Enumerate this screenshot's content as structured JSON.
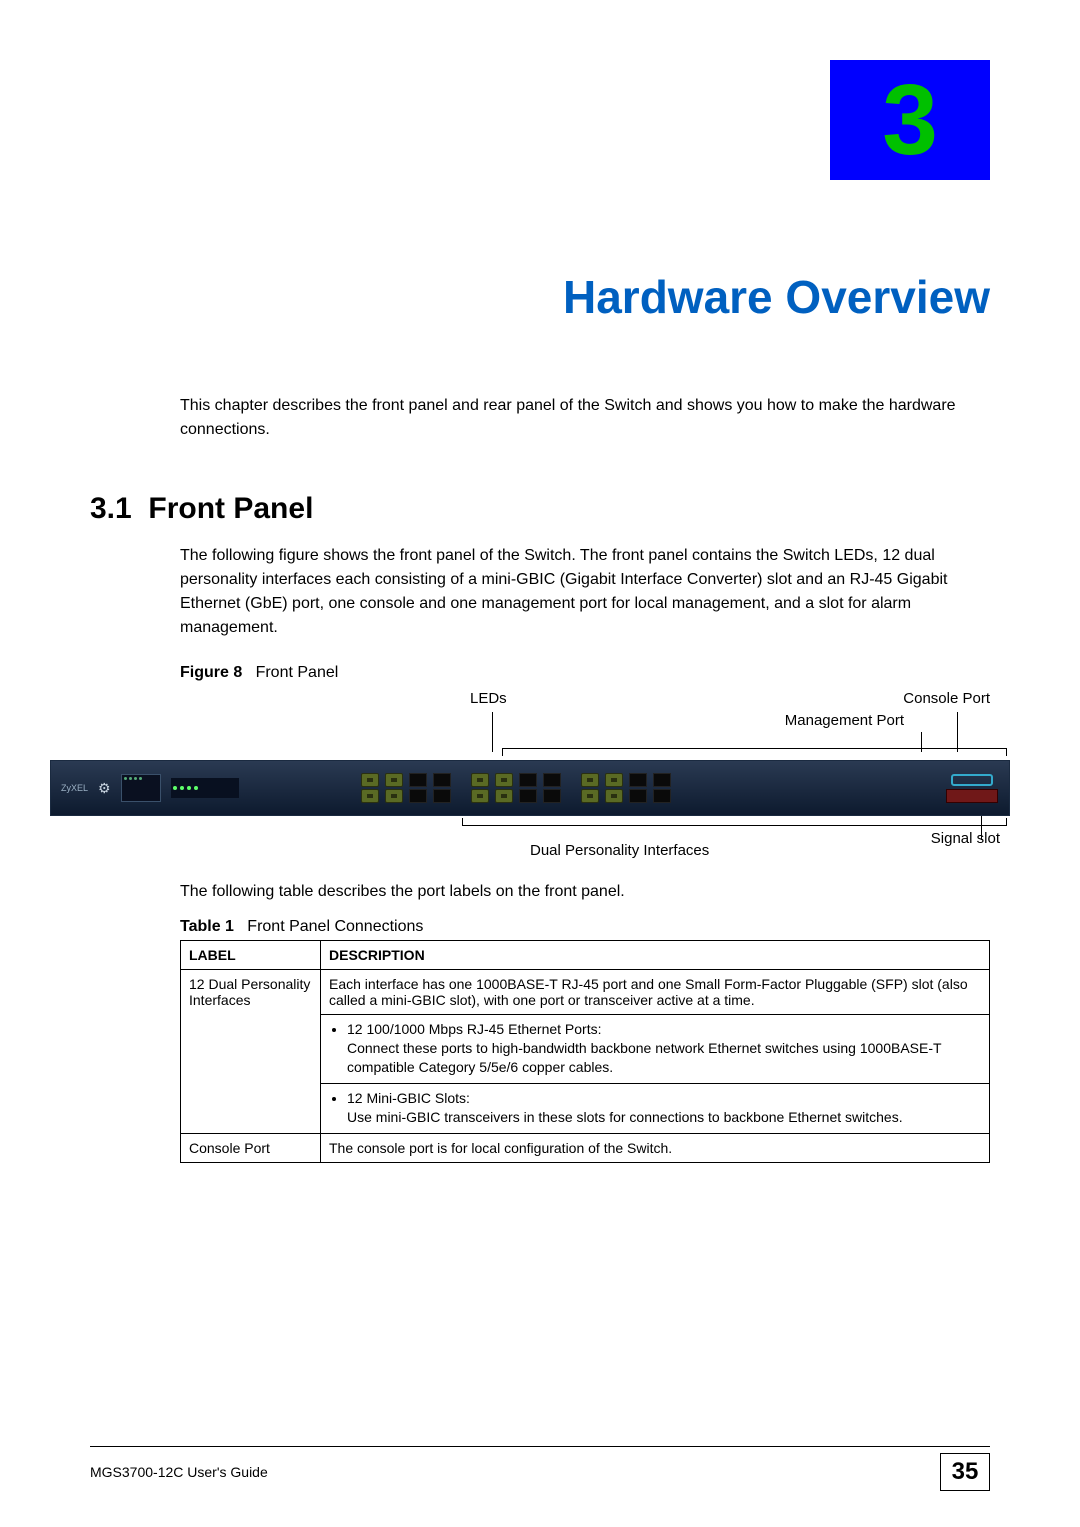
{
  "chapter": {
    "badge_number": "3",
    "title": "Hardware Overview"
  },
  "intro": "This chapter describes the front panel and rear panel of the Switch and shows you how to make the hardware connections.",
  "section": {
    "number": "3.1",
    "title": "Front Panel",
    "body": "The following figure shows the front panel of the Switch. The front panel contains the Switch LEDs, 12 dual personality interfaces each consisting of a mini-GBIC (Gigabit Interface Converter) slot and an RJ-45 Gigabit Ethernet (GbE) port, one console and one management port for local management, and a slot for alarm management."
  },
  "figure": {
    "label_prefix": "Figure 8",
    "label_text": "Front Panel",
    "annot_leds": "LEDs",
    "annot_console": "Console Port",
    "annot_mgmt": "Management Port",
    "annot_dual": "Dual Personality Interfaces",
    "annot_signal": "Signal slot",
    "brand": "ZyXEL"
  },
  "table_intro": "The following table describes the port labels on the front panel.",
  "table": {
    "label_prefix": "Table 1",
    "label_text": "Front Panel Connections",
    "header_label": "LABEL",
    "header_desc": "DESCRIPTION",
    "rows": {
      "r0_label": "12 Dual Personality Interfaces",
      "r0_desc": "Each interface has one 1000BASE-T RJ-45 port and one Small Form-Factor Pluggable (SFP) slot (also called a mini-GBIC slot), with one port or transceiver active at a time.",
      "r1_bullet": "12 100/1000 Mbps RJ-45 Ethernet Ports:",
      "r1_sub": "Connect these ports to high-bandwidth backbone network Ethernet switches using 1000BASE-T compatible Category 5/5e/6 copper cables.",
      "r2_bullet": "12 Mini-GBIC Slots:",
      "r2_sub": "Use mini-GBIC transceivers in these slots for connections to backbone Ethernet switches.",
      "r3_label": "Console Port",
      "r3_desc": "The console port is for local configuration of the Switch."
    }
  },
  "footer": {
    "guide": "MGS3700-12C User's Guide",
    "page": "35"
  },
  "colors": {
    "badge_bg": "#0000ff",
    "badge_fg": "#00c000",
    "title_color": "#0060c0"
  }
}
